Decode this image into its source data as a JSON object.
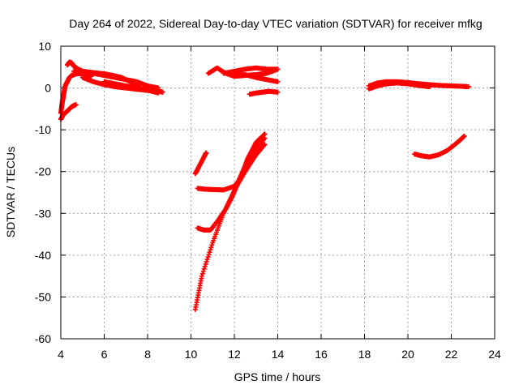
{
  "chart_data": {
    "type": "scatter",
    "title": "Day 264 of 2022, Sidereal Day-to-day VTEC variation (SDTVAR) for receiver mfkg",
    "xlabel": "GPS time / hours",
    "ylabel": "SDTVAR / TECUs",
    "xlim": [
      4,
      24
    ],
    "ylim": [
      -60,
      10
    ],
    "x_ticks": [
      4,
      6,
      8,
      10,
      12,
      14,
      16,
      18,
      20,
      22,
      24
    ],
    "y_ticks": [
      -60,
      -50,
      -40,
      -30,
      -20,
      -10,
      0,
      10
    ],
    "x_tick_labels": [
      "4",
      "6",
      "8",
      "10",
      "12",
      "14",
      "16",
      "18",
      "20",
      "22",
      "24"
    ],
    "y_tick_labels": [
      "-60",
      "-50",
      "-40",
      "-30",
      "-20",
      "-10",
      "0",
      "10"
    ],
    "grid": true,
    "legend": false,
    "marker": "plus",
    "marker_color": "#ff0000",
    "series": [
      {
        "x": [
          4.0,
          4.1,
          4.2,
          4.3,
          4.4,
          4.5,
          4.6,
          4.7
        ],
        "y": [
          -7.5,
          -6.5,
          -6.0,
          -5.5,
          -5.0,
          -4.5,
          -4.2,
          -4.0
        ]
      },
      {
        "x": [
          4.0,
          4.05,
          4.1,
          4.15,
          4.2,
          4.3,
          4.4,
          4.5,
          4.6,
          4.8,
          5.0,
          5.2,
          5.4
        ],
        "y": [
          -6.0,
          -4.0,
          -2.5,
          -1.0,
          0.5,
          1.5,
          2.5,
          3.0,
          3.2,
          3.5,
          3.3,
          3.0,
          2.8
        ]
      },
      {
        "x": [
          4.3,
          4.4,
          4.5,
          4.6,
          4.8,
          5.0,
          5.3,
          5.6,
          6.0,
          6.4,
          6.8,
          7.2,
          7.6
        ],
        "y": [
          5.5,
          6.2,
          6.0,
          5.2,
          4.5,
          4.0,
          3.8,
          3.6,
          3.4,
          3.0,
          2.5,
          1.5,
          0.5
        ]
      },
      {
        "x": [
          4.6,
          5.0,
          5.5,
          6.0,
          6.5,
          7.0,
          7.5,
          8.0,
          8.5
        ],
        "y": [
          4.0,
          3.8,
          3.5,
          3.0,
          2.5,
          2.0,
          1.5,
          0.5,
          0.0
        ]
      },
      {
        "x": [
          5.0,
          5.5,
          6.0,
          6.5,
          7.0,
          7.5,
          8.0,
          8.5,
          8.7
        ],
        "y": [
          2.5,
          1.5,
          0.8,
          0.3,
          0.0,
          -0.3,
          -0.6,
          -0.8,
          -1.0
        ]
      },
      {
        "x": [
          6.0,
          6.5,
          7.0,
          7.5,
          8.0,
          8.5
        ],
        "y": [
          1.5,
          1.0,
          0.5,
          0.0,
          -0.5,
          -1.2
        ]
      },
      {
        "x": [
          10.2,
          10.4,
          10.6,
          10.7
        ],
        "y": [
          -20.5,
          -18.5,
          -16.5,
          -15.5
        ]
      },
      {
        "x": [
          10.2,
          10.5,
          11.0,
          11.5,
          12.0,
          12.5,
          13.0,
          13.4
        ],
        "y": [
          -53.0,
          -45.0,
          -37.0,
          -30.0,
          -24.5,
          -20.0,
          -16.0,
          -13.5
        ]
      },
      {
        "x": [
          10.3,
          10.6,
          11.0,
          11.5,
          12.0,
          12.3,
          12.6,
          13.0,
          13.4
        ],
        "y": [
          -24.0,
          -24.2,
          -24.3,
          -24.4,
          -23.5,
          -21.5,
          -17.0,
          -13.0,
          -11.0
        ]
      },
      {
        "x": [
          10.3,
          10.6,
          10.9,
          11.2,
          11.6,
          11.9,
          12.1,
          12.3,
          12.6,
          13.0,
          13.4
        ],
        "y": [
          -33.5,
          -34.0,
          -34.0,
          -32.0,
          -29.0,
          -26.0,
          -23.5,
          -21.0,
          -17.5,
          -14.5,
          -12.0
        ]
      },
      {
        "x": [
          10.8,
          11.2,
          11.6,
          12.0,
          12.5,
          13.0,
          13.5,
          14.0
        ],
        "y": [
          3.5,
          4.8,
          3.5,
          2.8,
          3.0,
          3.2,
          3.5,
          4.5
        ]
      },
      {
        "x": [
          11.5,
          12.0,
          12.5,
          13.0,
          13.5,
          14.0
        ],
        "y": [
          3.5,
          4.0,
          4.5,
          4.8,
          4.5,
          4.5
        ]
      },
      {
        "x": [
          12.0,
          12.5,
          13.0,
          13.5,
          14.0
        ],
        "y": [
          3.0,
          3.2,
          2.5,
          2.0,
          1.5
        ]
      },
      {
        "x": [
          12.7,
          13.0,
          13.3,
          13.6,
          14.0
        ],
        "y": [
          -1.5,
          -1.2,
          -1.0,
          -0.8,
          -1.0
        ]
      },
      {
        "x": [
          18.2,
          18.6,
          19.0,
          19.5,
          20.0,
          20.5,
          21.0,
          21.5,
          22.0,
          22.5,
          22.8
        ],
        "y": [
          0.5,
          1.2,
          1.5,
          1.5,
          1.3,
          1.0,
          0.8,
          0.6,
          0.5,
          0.4,
          0.3
        ]
      },
      {
        "x": [
          18.2,
          18.6,
          19.0,
          19.5,
          20.0,
          20.5,
          21.0
        ],
        "y": [
          -0.2,
          0.5,
          1.0,
          1.2,
          1.0,
          0.6,
          0.3
        ]
      },
      {
        "x": [
          20.3,
          20.6,
          21.0,
          21.4,
          21.8,
          22.1,
          22.4,
          22.6
        ],
        "y": [
          -15.8,
          -16.2,
          -16.5,
          -16.0,
          -15.0,
          -13.8,
          -12.5,
          -11.5
        ]
      }
    ]
  }
}
